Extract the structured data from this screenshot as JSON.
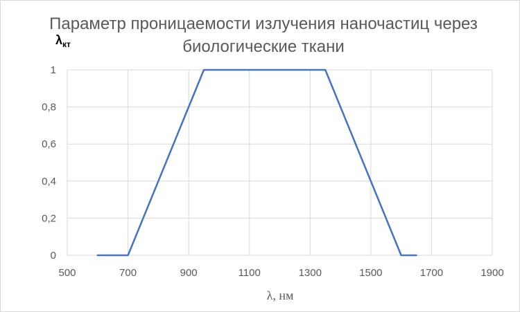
{
  "chart_data": {
    "type": "line",
    "title": "Параметр проницаемости излучения наночастиц через биологические ткани",
    "ylabel": "λ",
    "ylabel_subscript": "кт",
    "xlabel": "λ, нм",
    "xlim": [
      500,
      1900
    ],
    "ylim": [
      0,
      1
    ],
    "xticks": [
      500,
      700,
      900,
      1100,
      1300,
      1500,
      1700,
      1900
    ],
    "yticks": [
      0,
      0.2,
      0.4,
      0.6,
      0.8,
      1
    ],
    "ytick_labels": [
      "0",
      "0,2",
      "0,4",
      "0,6",
      "0,8",
      "1"
    ],
    "grid": true,
    "line_color": "#4472c4",
    "series": [
      {
        "x": [
          600,
          700,
          950,
          1350,
          1600,
          1650
        ],
        "values": [
          0,
          0,
          1,
          1,
          0,
          0
        ]
      }
    ]
  }
}
